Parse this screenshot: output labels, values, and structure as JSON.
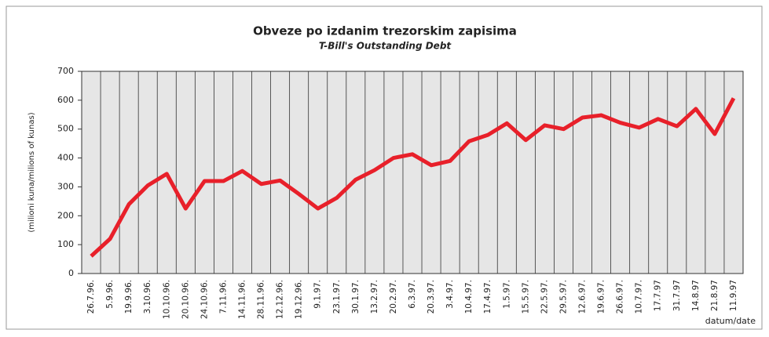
{
  "chart_data": {
    "type": "line",
    "title": "Obveze po izdanim trezorskim zapisima",
    "subtitle": "T-Bill's Outstanding Debt",
    "y_label": "(milioni kuna/milions of kunas)",
    "x_label": "datum/date",
    "categories": [
      "26.7.96.",
      "5.9.96.",
      "19.9.96.",
      "3.10.96.",
      "10.10.96.",
      "20.10.96.",
      "24.10.96.",
      "7.11.96.",
      "14.11.96.",
      "28.11.96.",
      "12.12.96.",
      "19.12.96.",
      "9.1.97.",
      "23.1.97.",
      "30.1.97.",
      "13.2.97.",
      "20.2.97.",
      "6.3.97.",
      "20.3.97.",
      "3.4.97.",
      "10.4.97.",
      "17.4.97.",
      "1.5.97.",
      "15.5.97.",
      "22.5.97.",
      "29.5.97.",
      "12.6.97.",
      "19.6.97.",
      "26.6.97.",
      "10.7.97.",
      "17.7.97",
      "31.7.97",
      "14.8.97",
      "21.8.97",
      "11.9.97"
    ],
    "values": [
      60,
      120,
      240,
      305,
      345,
      225,
      320,
      320,
      355,
      310,
      322,
      275,
      225,
      262,
      325,
      358,
      400,
      413,
      375,
      390,
      458,
      480,
      520,
      462,
      513,
      500,
      540,
      548,
      522,
      505,
      535,
      510,
      570,
      483,
      607
    ],
    "color": "#e8202a",
    "ylim": [
      0,
      700
    ],
    "yticks": [
      0,
      100,
      200,
      300,
      400,
      500,
      600,
      700
    ],
    "grid": "x"
  }
}
